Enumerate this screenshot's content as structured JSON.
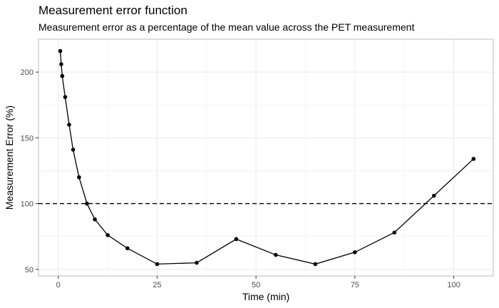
{
  "chart_data": {
    "type": "line",
    "title": "Measurement error function",
    "subtitle": "Measurement error as a percentage of the mean value across the PET measurement",
    "xlabel": "Time (min)",
    "ylabel": "Measurement Error (%)",
    "xlim": [
      -5,
      110
    ],
    "ylim": [
      45,
      225
    ],
    "xticks": [
      0,
      25,
      50,
      75,
      100
    ],
    "yticks": [
      50,
      100,
      150,
      200
    ],
    "grid": true,
    "reference_line": {
      "y": 100,
      "style": "dashed"
    },
    "x": [
      0.5,
      0.75,
      1.0,
      1.75,
      2.75,
      3.75,
      5.25,
      7.25,
      9.25,
      12.5,
      17.5,
      25.0,
      35.0,
      45.0,
      55.0,
      65.0,
      75.0,
      85.0,
      95.0,
      105.0
    ],
    "values": [
      216,
      206,
      197,
      181,
      160,
      141,
      120,
      100,
      88,
      76,
      66,
      54,
      55,
      73,
      61,
      54,
      63,
      78,
      106,
      134
    ]
  }
}
